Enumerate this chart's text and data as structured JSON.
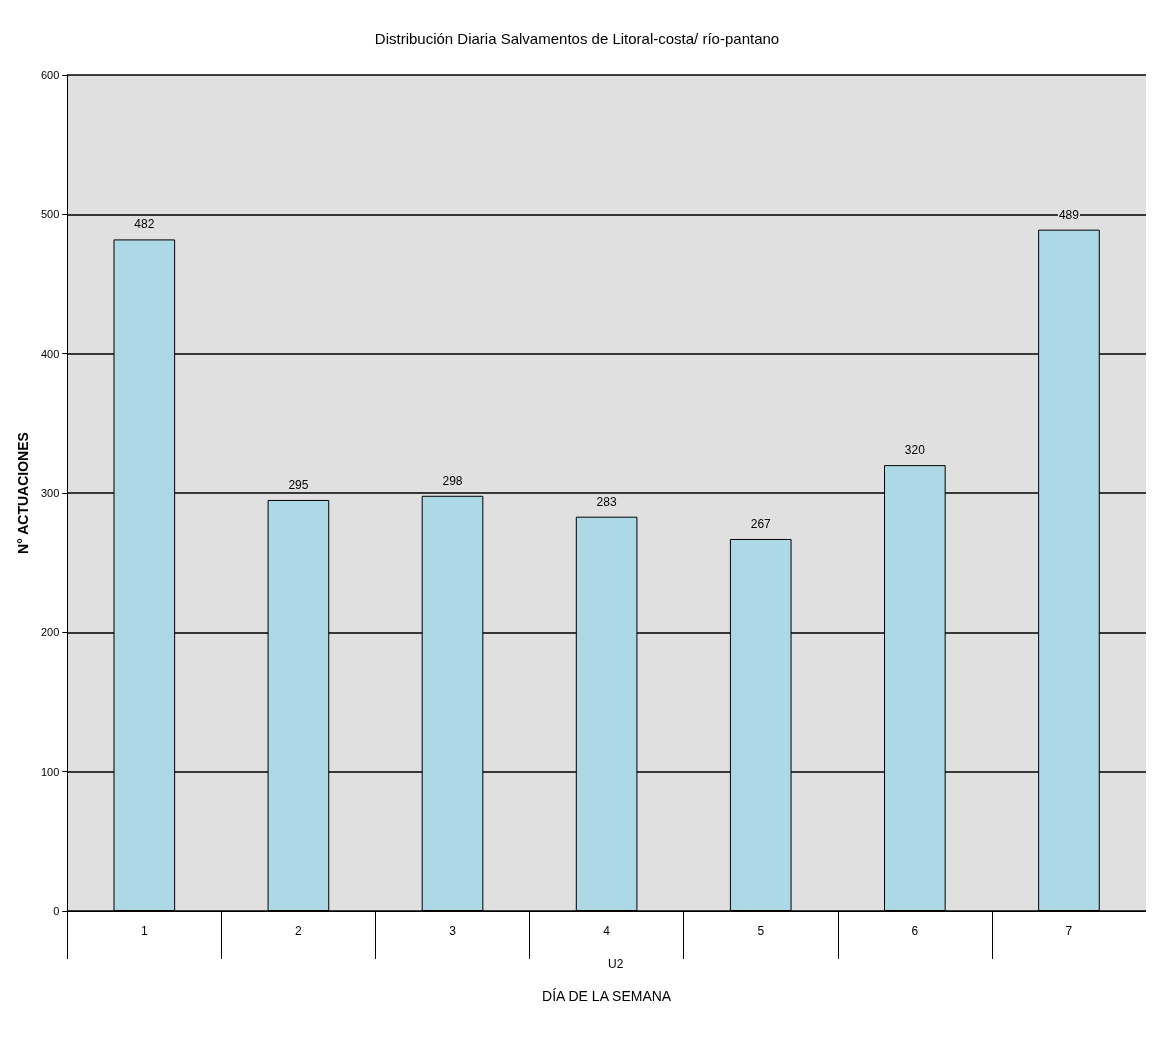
{
  "chart_data": {
    "type": "bar",
    "title": "Distribución Diaria Salvamentos de Litoral-costa/ río-pantano",
    "xlabel": "DÍA DE LA SEMANA",
    "ylabel": "N° ACTUACIONES",
    "annotations": [
      "U2"
    ],
    "categories": [
      "1",
      "2",
      "3",
      "4",
      "5",
      "6",
      "7"
    ],
    "values": [
      482,
      295,
      298,
      283,
      267,
      320,
      489
    ],
    "color": "#add8e6",
    "ylim": [
      0,
      600
    ],
    "yticks": [
      0,
      100,
      200,
      300,
      400,
      500,
      600
    ],
    "grid": "y",
    "data_labels": true
  }
}
